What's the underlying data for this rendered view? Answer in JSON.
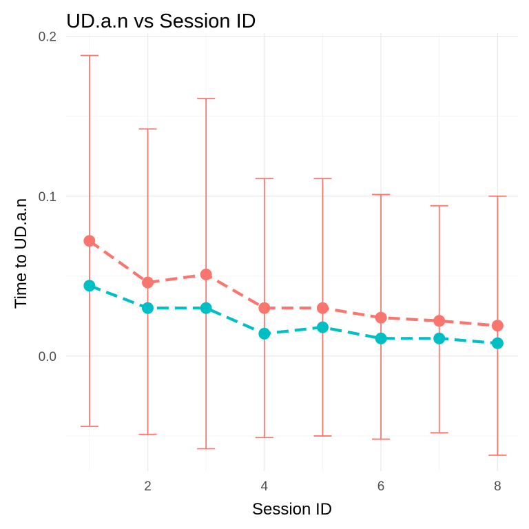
{
  "chart_data": {
    "type": "line",
    "title": "UD.a.n vs Session ID",
    "xlabel": "Session ID",
    "ylabel": "Time to UD.a.n",
    "x": [
      1,
      2,
      3,
      4,
      5,
      6,
      7,
      8
    ],
    "xlim": [
      0.6,
      8.35
    ],
    "ylim": [
      -0.072,
      0.202
    ],
    "x_ticks": [
      2,
      4,
      6,
      8
    ],
    "x_tick_labels": [
      "2",
      "4",
      "6",
      "8"
    ],
    "y_ticks": [
      0.0,
      0.1,
      0.2
    ],
    "y_tick_labels": [
      "0.0",
      "0.1",
      "0.2"
    ],
    "grid": true,
    "legend": "none",
    "series": [
      {
        "color": "#F8766D",
        "line_style": "dashed",
        "y": [
          0.072,
          0.046,
          0.051,
          0.03,
          0.03,
          0.024,
          0.022,
          0.019
        ],
        "error_lower": [
          -0.044,
          -0.049,
          -0.058,
          -0.051,
          -0.05,
          -0.052,
          -0.048,
          -0.062
        ],
        "error_upper": [
          0.188,
          0.142,
          0.161,
          0.111,
          0.111,
          0.101,
          0.094,
          0.1
        ]
      },
      {
        "color": "#00BFC4",
        "line_style": "dashed",
        "y": [
          0.044,
          0.03,
          0.03,
          0.014,
          0.018,
          0.011,
          0.011,
          0.008
        ]
      }
    ]
  }
}
